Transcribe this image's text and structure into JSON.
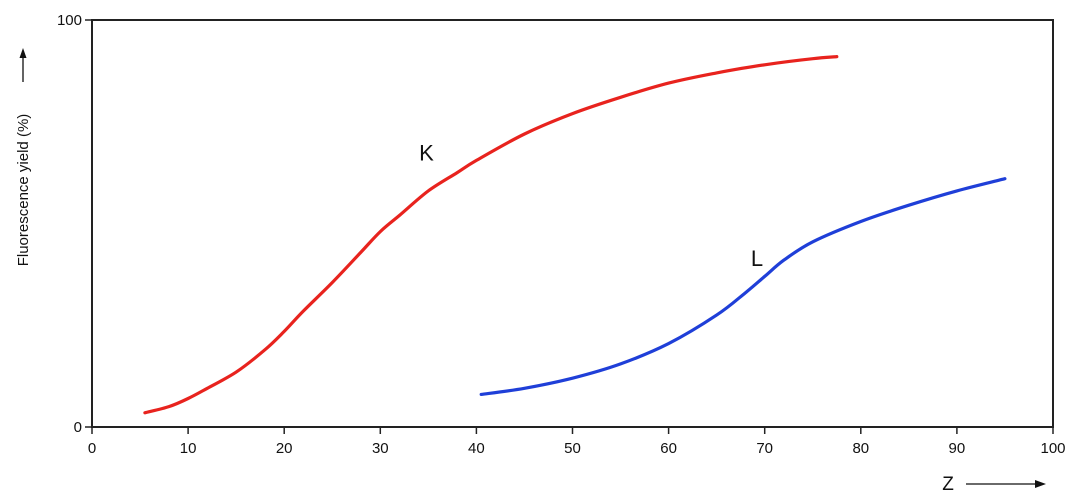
{
  "chart_data": {
    "type": "line",
    "title": "",
    "xlabel": "Z",
    "ylabel": "Fluorescence yield (%)",
    "xlim": [
      0,
      100
    ],
    "ylim": [
      0,
      100
    ],
    "x_ticks": [
      0,
      10,
      20,
      30,
      40,
      50,
      60,
      70,
      80,
      90,
      100
    ],
    "y_ticks": [
      0,
      100
    ],
    "grid": false,
    "legend": "none",
    "series": [
      {
        "name": "K",
        "color": "#e8231e",
        "x": [
          5.5,
          8,
          10,
          12,
          15,
          18,
          20,
          22,
          25,
          28,
          30,
          32,
          35,
          38,
          40,
          45,
          50,
          55,
          60,
          65,
          70,
          75,
          77.5
        ],
        "y": [
          3.5,
          5,
          7,
          9.5,
          13.5,
          19,
          23.5,
          28.5,
          35.5,
          43,
          48,
          52,
          58,
          62.5,
          65.5,
          72,
          77,
          81,
          84.5,
          87,
          89,
          90.5,
          91
        ]
      },
      {
        "name": "L",
        "color": "#1f3fd8",
        "x": [
          40.5,
          45,
          50,
          55,
          60,
          65,
          68,
          70,
          72,
          75,
          80,
          85,
          90,
          95
        ],
        "y": [
          8,
          9.5,
          12,
          15.5,
          20.5,
          27.5,
          33,
          37,
          41,
          45.5,
          50.5,
          54.5,
          58,
          61
        ]
      }
    ]
  }
}
